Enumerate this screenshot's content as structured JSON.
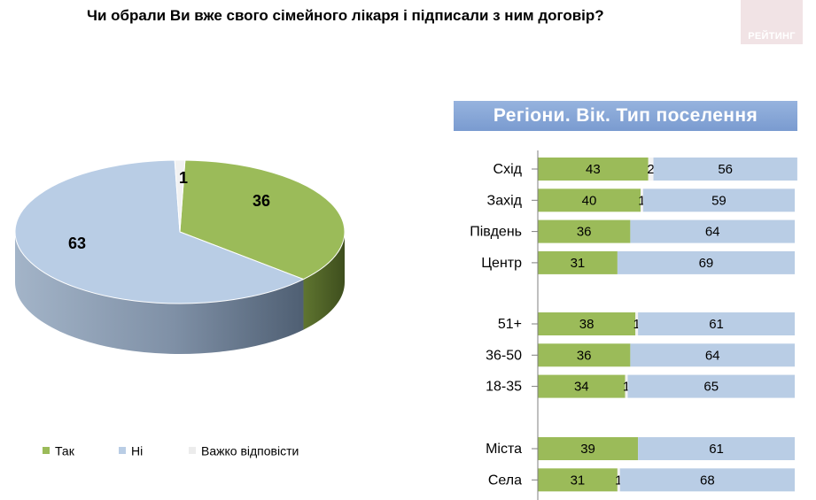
{
  "title": "Чи обрали Ви вже свого сімейного лікаря і підписали з ним договір?",
  "logo_text": "РЕЙТИНГ",
  "panel_header": "Регіони. Вік. Тип поселення",
  "colors": {
    "yes": "#9bbb59",
    "no": "#b9cde5",
    "hard": "#f2f2f2",
    "header": "#8eabda"
  },
  "legend": [
    {
      "key": "yes",
      "label": "Так"
    },
    {
      "key": "no",
      "label": "Ні"
    },
    {
      "key": "hard",
      "label": "Важко відповісти"
    }
  ],
  "chart_data": [
    {
      "type": "pie",
      "slices": [
        {
          "key": "yes",
          "label": "Так",
          "value": 36
        },
        {
          "key": "no",
          "label": "Ні",
          "value": 63
        },
        {
          "key": "hard",
          "label": "Важко відповісти",
          "value": 1
        }
      ]
    },
    {
      "type": "bar",
      "orientation": "horizontal",
      "stacked": true,
      "series_keys": [
        "yes",
        "hard",
        "no"
      ],
      "groups": [
        {
          "rows": [
            {
              "label": "Схід",
              "yes": 43,
              "hard": 2,
              "no": 56
            },
            {
              "label": "Захід",
              "yes": 40,
              "hard": 1,
              "no": 59
            },
            {
              "label": "Південь",
              "yes": 36,
              "hard": 0,
              "no": 64
            },
            {
              "label": "Центр",
              "yes": 31,
              "hard": 0,
              "no": 69
            }
          ]
        },
        {
          "rows": [
            {
              "label": "51+",
              "yes": 38,
              "hard": 1,
              "no": 61
            },
            {
              "label": "36-50",
              "yes": 36,
              "hard": 0,
              "no": 64
            },
            {
              "label": "18-35",
              "yes": 34,
              "hard": 1,
              "no": 65
            }
          ]
        },
        {
          "rows": [
            {
              "label": "Міста",
              "yes": 39,
              "hard": 0,
              "no": 61
            },
            {
              "label": "Села",
              "yes": 31,
              "hard": 1,
              "no": 68
            }
          ]
        }
      ]
    }
  ]
}
